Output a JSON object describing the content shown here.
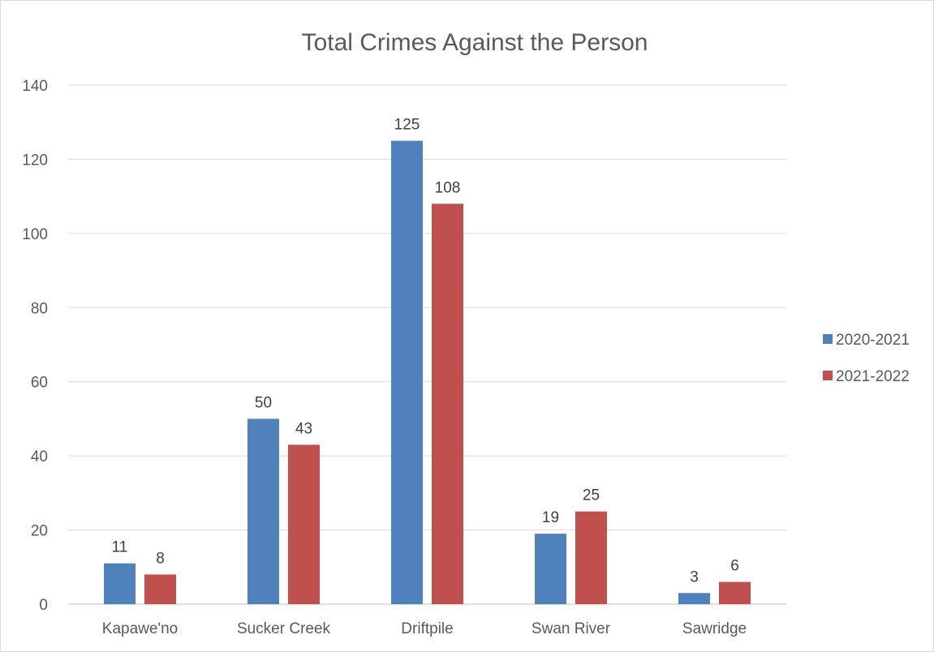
{
  "chart_data": {
    "type": "bar",
    "title": "Total Crimes Against the Person",
    "xlabel": "",
    "ylabel": "",
    "categories": [
      "Kapawe'no",
      "Sucker Creek",
      "Driftpile",
      "Swan River",
      "Sawridge"
    ],
    "series": [
      {
        "name": "2020-2021",
        "color": "#4F81BD",
        "values": [
          11,
          50,
          125,
          19,
          3
        ]
      },
      {
        "name": "2021-2022",
        "color": "#C0504D",
        "values": [
          8,
          43,
          108,
          25,
          6
        ]
      }
    ],
    "ylim": [
      0,
      140
    ],
    "yticks": [
      0,
      20,
      40,
      60,
      80,
      100,
      120,
      140
    ],
    "grid": true,
    "legend_position": "right",
    "data_labels": true
  }
}
